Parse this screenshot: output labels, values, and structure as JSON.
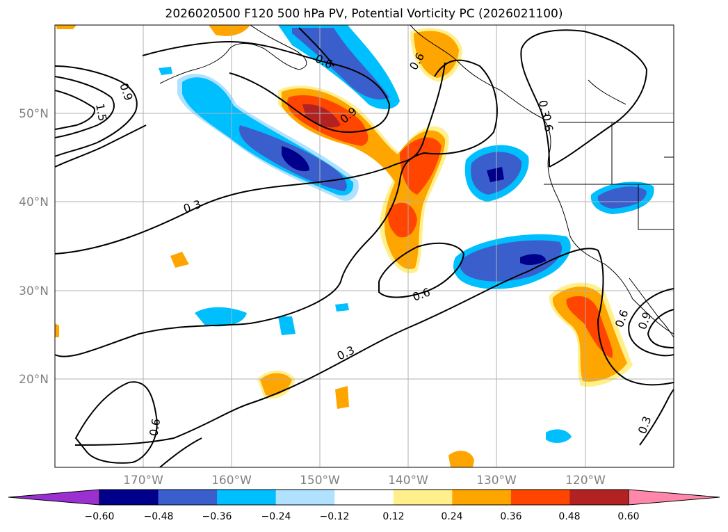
{
  "title": "2026020500 F120 500 hPa PV, Potential Vorticity PC (2026021100)",
  "map": {
    "latitude_labels": [
      "50°N",
      "40°N",
      "30°N",
      "20°N"
    ],
    "longitude_labels": [
      "170°W",
      "160°W",
      "150°W",
      "140°W",
      "130°W",
      "120°W"
    ],
    "contour_labels": [
      "0.6",
      "0.9",
      "0.6",
      "0.3",
      "0.6",
      "0.3",
      "0.6",
      "0.3",
      "0.9",
      "0.6",
      "0.3",
      "1.5",
      "0.9",
      "0.6"
    ]
  },
  "colorbar": {
    "ticks": [
      "−0.60",
      "−0.48",
      "−0.36",
      "−0.24",
      "−0.12",
      "0.12",
      "0.24",
      "0.36",
      "0.48",
      "0.60"
    ],
    "colors": [
      "#9b30d0",
      "#00008b",
      "#3a5fcd",
      "#00bfff",
      "#b0e2ff",
      "#ffffff",
      "#fff08c",
      "#ffa500",
      "#ff4500",
      "#b22222",
      "#ff88aa"
    ]
  }
}
